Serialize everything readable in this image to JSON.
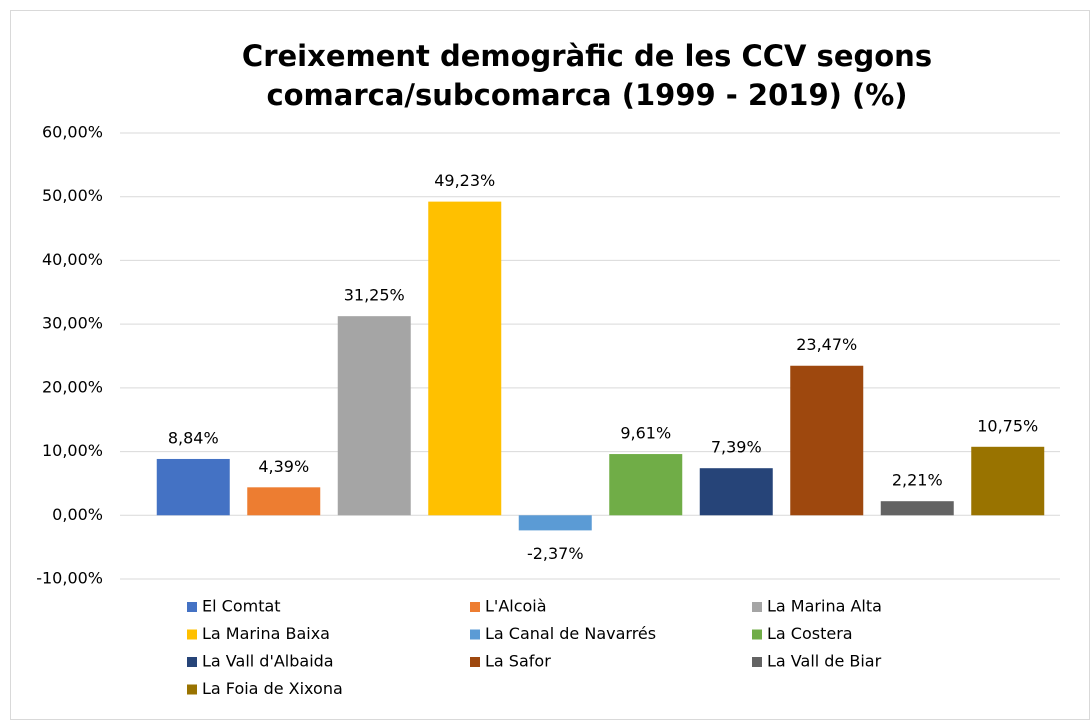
{
  "chart_data": {
    "type": "bar",
    "title": [
      "Creixement demogràfic de les CCV segons",
      "comarca/subcomarca (1999 - 2019) (%)"
    ],
    "categories": [
      "El Comtat",
      "L'Alcoià",
      "La Marina Alta",
      "La Marina Baixa",
      "La Canal de Navarrés",
      "La Costera",
      "La Vall d'Albaida",
      "La Safor",
      "La Vall de Biar",
      "La Foia de Xixona"
    ],
    "values": [
      8.84,
      4.39,
      31.25,
      49.23,
      -2.37,
      9.61,
      7.39,
      23.47,
      2.21,
      10.75
    ],
    "value_labels": [
      "8,84%",
      "4,39%",
      "31,25%",
      "49,23%",
      "-2,37%",
      "9,61%",
      "7,39%",
      "23,47%",
      "2,21%",
      "10,75%"
    ],
    "colors": [
      "#4472c4",
      "#ed7d31",
      "#a5a5a5",
      "#ffc000",
      "#5b9bd5",
      "#70ad47",
      "#264478",
      "#9e480e",
      "#636363",
      "#997300"
    ],
    "ylim": [
      -10,
      60
    ],
    "yticks": [
      {
        "value": -10,
        "label": "-10,00%"
      },
      {
        "value": 0,
        "label": "0,00%"
      },
      {
        "value": 10,
        "label": "10,00%"
      },
      {
        "value": 20,
        "label": "20,00%"
      },
      {
        "value": 30,
        "label": "30,00%"
      },
      {
        "value": 40,
        "label": "40,00%"
      },
      {
        "value": 50,
        "label": "50,00%"
      },
      {
        "value": 60,
        "label": "60,00%"
      }
    ],
    "grid": true,
    "legend": "bottom"
  }
}
